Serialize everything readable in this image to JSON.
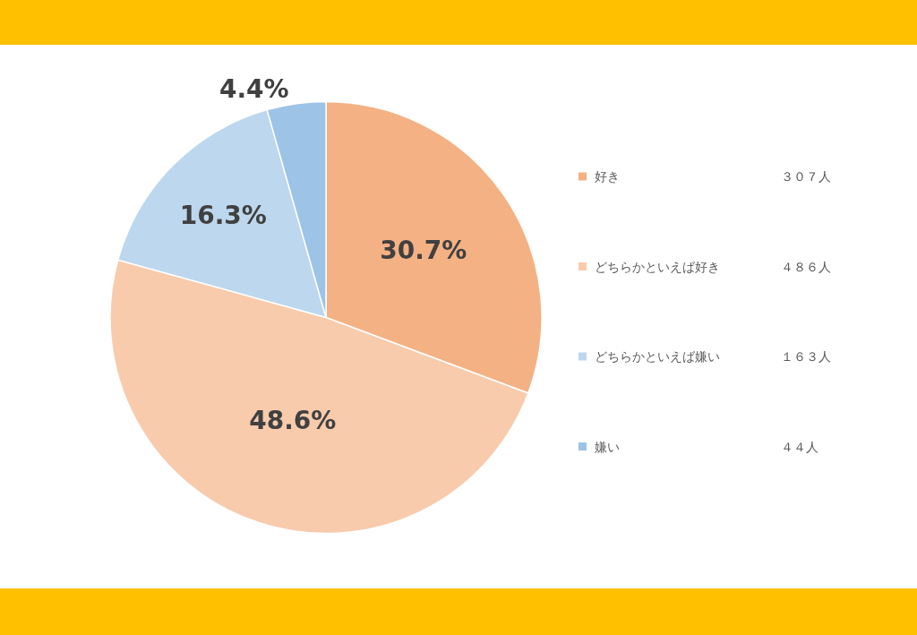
{
  "chart_data": {
    "type": "pie",
    "categories": [
      "好き",
      "どちらかといえば好き",
      "どちらかといえば嫌い",
      "嫌い"
    ],
    "values": [
      30.7,
      48.6,
      16.3,
      4.4
    ],
    "value_labels": [
      "30.7%",
      "48.6%",
      "16.3%",
      "4.4%"
    ],
    "colors": [
      "#f4b183",
      "#f8cbad",
      "#bdd7ee",
      "#9dc3e6"
    ],
    "annotations": [
      "３０７人",
      "４８６人",
      "１６３人",
      "４４人"
    ],
    "legend": "right"
  }
}
